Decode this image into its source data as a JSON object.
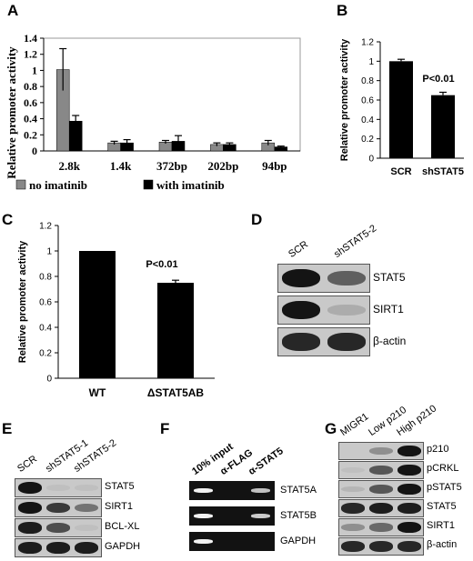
{
  "panels": {
    "A": "A",
    "B": "B",
    "C": "C",
    "D": "D",
    "E": "E",
    "F": "F",
    "G": "G"
  },
  "chart_data": [
    {
      "panel": "A",
      "type": "bar",
      "categories": [
        "2.8k",
        "1.4k",
        "372bp",
        "202bp",
        "94bp"
      ],
      "series": [
        {
          "name": "no imatinib",
          "color": "#888888",
          "values": [
            1.01,
            0.1,
            0.11,
            0.08,
            0.1
          ],
          "errors": [
            0.26,
            0.02,
            0.02,
            0.02,
            0.03
          ]
        },
        {
          "name": "with imatinib",
          "color": "#000000",
          "values": [
            0.37,
            0.1,
            0.12,
            0.08,
            0.05
          ],
          "errors": [
            0.07,
            0.04,
            0.07,
            0.02,
            0.01
          ]
        }
      ],
      "ylabel": "Relative promoter activity",
      "ylim": [
        0,
        1.4
      ],
      "yticks": [
        "0",
        "0.2",
        "0.4",
        "0.6",
        "0.8",
        "1",
        "1.2",
        "1.4"
      ],
      "legend": "bottom"
    },
    {
      "panel": "B",
      "type": "bar",
      "categories": [
        "SCR",
        "shSTAT5"
      ],
      "values": [
        1.0,
        0.65
      ],
      "errors": [
        0.02,
        0.03
      ],
      "annotation": "P<0.01",
      "ylabel": "Relative promoter activity",
      "ylim": [
        0,
        1.2
      ],
      "yticks": [
        "0",
        "0.2",
        "0.4",
        "0.6",
        "0.8",
        "1",
        "1.2"
      ],
      "color": "#000000"
    },
    {
      "panel": "C",
      "type": "bar",
      "categories": [
        "WT",
        "ΔSTAT5AB"
      ],
      "values": [
        1.0,
        0.75
      ],
      "errors": [
        0.0,
        0.02
      ],
      "annotation": "P<0.01",
      "ylabel": "Relative promoter activity",
      "ylim": [
        0,
        1.2
      ],
      "yticks": [
        "0",
        "0.2",
        "0.4",
        "0.6",
        "0.8",
        "1",
        "1.2"
      ],
      "color": "#000000"
    }
  ],
  "blots": {
    "D": {
      "lanes": [
        "SCR",
        "shSTAT5-2"
      ],
      "rows": [
        {
          "label": "STAT5",
          "intensity": [
            0.95,
            0.55
          ]
        },
        {
          "label": "SIRT1",
          "intensity": [
            0.95,
            0.15
          ]
        },
        {
          "label": "β-actin",
          "intensity": [
            0.85,
            0.85
          ]
        }
      ]
    },
    "E": {
      "lanes": [
        "SCR",
        "shSTAT5-1",
        "shSTAT5-2"
      ],
      "rows": [
        {
          "label": "STAT5",
          "intensity": [
            0.95,
            0.05,
            0.05
          ]
        },
        {
          "label": "SIRT1",
          "intensity": [
            0.95,
            0.75,
            0.45
          ]
        },
        {
          "label": "BCL-XL",
          "intensity": [
            0.9,
            0.65,
            0.05
          ]
        },
        {
          "label": "GAPDH",
          "intensity": [
            0.9,
            0.9,
            0.9
          ]
        }
      ]
    },
    "F": {
      "lanes": [
        "10% input",
        "α-FLAG",
        "α-STAT5"
      ],
      "rows": [
        {
          "label": "STAT5A",
          "intensity": [
            0.95,
            0.0,
            0.7
          ]
        },
        {
          "label": "STAT5B",
          "intensity": [
            0.95,
            0.0,
            0.75
          ]
        },
        {
          "label": "GAPDH",
          "intensity": [
            0.95,
            0.0,
            0.0
          ]
        }
      ]
    },
    "G": {
      "lanes": [
        "MIGR1",
        "Low p210",
        "High p210"
      ],
      "rows": [
        {
          "label": "p210",
          "intensity": [
            0.0,
            0.3,
            0.95
          ]
        },
        {
          "label": "pCRKL",
          "intensity": [
            0.05,
            0.6,
            0.95
          ]
        },
        {
          "label": "pSTAT5",
          "intensity": [
            0.1,
            0.6,
            0.95
          ]
        },
        {
          "label": "STAT5",
          "intensity": [
            0.85,
            0.9,
            0.9
          ]
        },
        {
          "label": "SIRT1",
          "intensity": [
            0.3,
            0.5,
            0.95
          ]
        },
        {
          "label": "β-actin",
          "intensity": [
            0.85,
            0.85,
            0.85
          ]
        }
      ]
    }
  }
}
